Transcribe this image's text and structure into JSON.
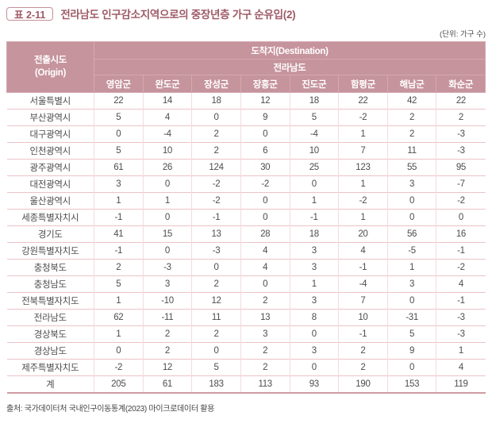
{
  "title": {
    "badge": "표 2-11",
    "text": "전라남도 인구감소지역으로의 중장년층 가구 순유입(2)"
  },
  "unit_note": "(단위: 가구 수)",
  "source_note": "출처: 국가데이터처 국내인구이동통계(2023) 마이크로데이터 활용",
  "colors": {
    "header_bg": "#c6949d",
    "header_text": "#ffffff",
    "accent_title": "#9e5a66",
    "row_border": "#ecc3c8",
    "column_border": "#f4dadd",
    "table_bottom_border": "#cf9ba3",
    "body_text": "#4d4d4d"
  },
  "chart_data": {
    "type": "table",
    "origin_header_line1": "전출시도",
    "origin_header_line2": "(Origin)",
    "destination_header": "도착지(Destination)",
    "region_group_header": "전라남도",
    "columns": [
      "영암군",
      "완도군",
      "장성군",
      "장흥군",
      "진도군",
      "함평군",
      "해남군",
      "화순군"
    ],
    "rows": [
      {
        "origin": "서울특별시",
        "values": [
          22,
          14,
          18,
          12,
          18,
          22,
          42,
          22
        ]
      },
      {
        "origin": "부산광역시",
        "values": [
          5,
          4,
          0,
          9,
          5,
          -2,
          2,
          2
        ]
      },
      {
        "origin": "대구광역시",
        "values": [
          0,
          -4,
          2,
          0,
          -4,
          1,
          2,
          -3
        ]
      },
      {
        "origin": "인천광역시",
        "values": [
          5,
          10,
          2,
          6,
          10,
          7,
          11,
          -3
        ]
      },
      {
        "origin": "광주광역시",
        "values": [
          61,
          26,
          124,
          30,
          25,
          123,
          55,
          95
        ]
      },
      {
        "origin": "대전광역시",
        "values": [
          3,
          0,
          -2,
          -2,
          0,
          1,
          3,
          -7
        ]
      },
      {
        "origin": "울산광역시",
        "values": [
          1,
          1,
          -2,
          0,
          1,
          -2,
          0,
          -2
        ]
      },
      {
        "origin": "세종특별자치시",
        "values": [
          -1,
          0,
          -1,
          0,
          -1,
          1,
          0,
          0
        ]
      },
      {
        "origin": "경기도",
        "values": [
          41,
          15,
          13,
          28,
          18,
          20,
          56,
          16
        ]
      },
      {
        "origin": "강원특별자치도",
        "values": [
          -1,
          0,
          -3,
          4,
          3,
          4,
          -5,
          -1
        ]
      },
      {
        "origin": "충청북도",
        "values": [
          2,
          -3,
          0,
          4,
          3,
          -1,
          1,
          -2
        ]
      },
      {
        "origin": "충청남도",
        "values": [
          5,
          3,
          2,
          0,
          1,
          -4,
          3,
          4
        ]
      },
      {
        "origin": "전북특별자치도",
        "values": [
          1,
          -10,
          12,
          2,
          3,
          7,
          0,
          -1
        ]
      },
      {
        "origin": "전라남도",
        "values": [
          62,
          -11,
          11,
          13,
          8,
          10,
          -31,
          -3
        ]
      },
      {
        "origin": "경상북도",
        "values": [
          1,
          2,
          2,
          3,
          0,
          -1,
          5,
          -3
        ]
      },
      {
        "origin": "경상남도",
        "values": [
          0,
          2,
          0,
          2,
          3,
          2,
          9,
          1
        ]
      },
      {
        "origin": "제주특별자치도",
        "values": [
          -2,
          12,
          5,
          2,
          0,
          2,
          0,
          4
        ]
      },
      {
        "origin": "계",
        "values": [
          205,
          61,
          183,
          113,
          93,
          190,
          153,
          119
        ],
        "is_total": true
      }
    ]
  }
}
